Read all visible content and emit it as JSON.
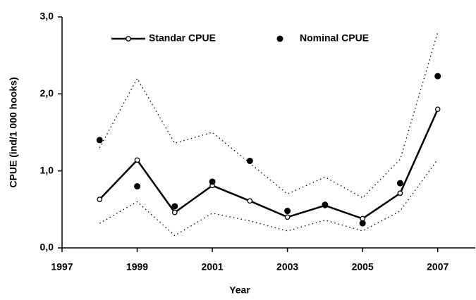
{
  "chart_data": {
    "type": "line",
    "xlabel": "Year",
    "ylabel": "CPUE (ind/1 000 hooks)",
    "x": [
      1998,
      1999,
      2000,
      2001,
      2002,
      2003,
      2004,
      2005,
      2006,
      2007
    ],
    "series": [
      {
        "name": "Standar CPUE",
        "color": "#000000",
        "line": "solid",
        "marker": "open-circle",
        "values": [
          0.63,
          1.14,
          0.46,
          0.81,
          0.61,
          0.4,
          0.55,
          0.38,
          0.71,
          1.8
        ]
      },
      {
        "name": "Nominal CPUE",
        "color": "#000000",
        "line": "none",
        "marker": "dot",
        "values": [
          1.4,
          0.8,
          0.54,
          0.86,
          1.13,
          0.48,
          0.56,
          0.32,
          0.84,
          2.23
        ]
      },
      {
        "color": "#000000",
        "line": "dotted",
        "marker": "none",
        "values": [
          1.3,
          2.2,
          1.36,
          1.5,
          1.1,
          0.7,
          0.92,
          0.65,
          1.15,
          2.8
        ]
      },
      {
        "color": "#000000",
        "line": "dotted",
        "marker": "none",
        "values": [
          0.32,
          0.6,
          0.16,
          0.45,
          0.35,
          0.22,
          0.36,
          0.22,
          0.48,
          1.15
        ]
      }
    ],
    "xlim": [
      1997,
      2008
    ],
    "xticks": [
      1997,
      1999,
      2001,
      2003,
      2005,
      2007
    ],
    "ylim": [
      0,
      3
    ],
    "yticks": [
      {
        "value": 0,
        "label": "0,0"
      },
      {
        "value": 1,
        "label": "1,0"
      },
      {
        "value": 2,
        "label": "2,0"
      },
      {
        "value": 3,
        "label": "3,0"
      }
    ],
    "grid": false,
    "legend": "top"
  }
}
